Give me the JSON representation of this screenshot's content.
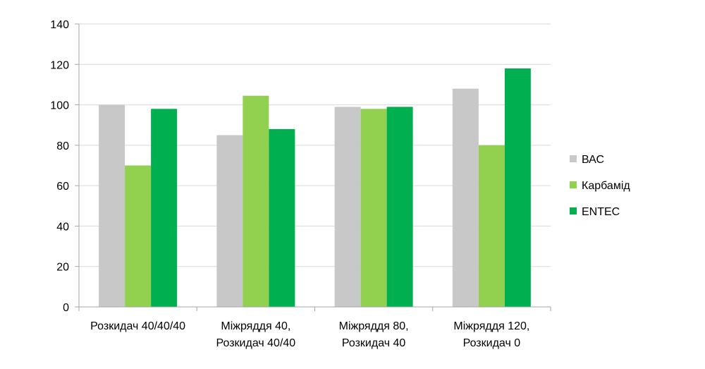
{
  "chart_data": {
    "type": "bar",
    "title": "",
    "xlabel": "",
    "ylabel": "",
    "ylim": [
      0,
      140
    ],
    "yticks": [
      "0",
      "20",
      "40",
      "60",
      "80",
      "100",
      "120",
      "140"
    ],
    "grid": true,
    "legend_position": "right",
    "categories": [
      [
        "Розкидач 40/40/40"
      ],
      [
        "Міжряддя 40,",
        "Розкидач 40/40"
      ],
      [
        "Міжряддя 80,",
        "Розкидач 40"
      ],
      [
        "Міжряддя 120,",
        "Розкидач 0"
      ]
    ],
    "series": [
      {
        "name": "ВАС",
        "color": "#c8c8c8",
        "values": [
          100,
          85,
          99,
          108
        ]
      },
      {
        "name": "Карбамід",
        "color": "#92d050",
        "values": [
          70,
          104.5,
          98,
          80
        ]
      },
      {
        "name": "ENTEC",
        "color": "#00b050",
        "values": [
          98,
          88,
          99,
          118
        ]
      }
    ]
  }
}
